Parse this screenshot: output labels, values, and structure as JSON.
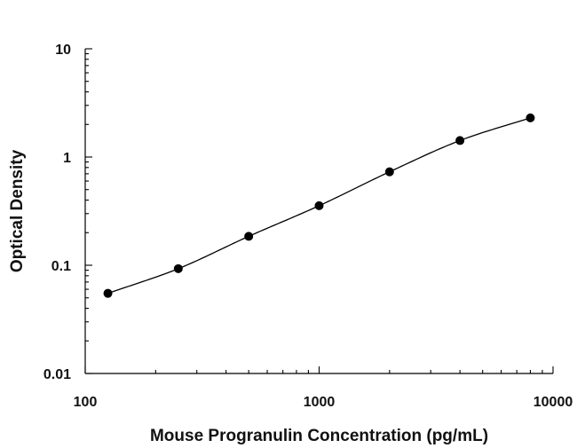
{
  "chart_data": {
    "type": "scatter",
    "title": "",
    "xlabel": "Mouse Progranulin Concentration (pg/mL)",
    "ylabel": "Optical Density",
    "x_scale": "log",
    "y_scale": "log",
    "xlim": [
      100,
      10000
    ],
    "ylim": [
      0.01,
      10
    ],
    "x_ticks": [
      "100",
      "1000",
      "10000"
    ],
    "y_ticks": [
      "10",
      "1",
      "0.1",
      "0.01"
    ],
    "grid": false,
    "legend": "none",
    "series": [
      {
        "x": [
          125,
          250,
          500,
          1000,
          2000,
          4000,
          8000
        ],
        "y": [
          0.055,
          0.093,
          0.185,
          0.355,
          0.73,
          1.42,
          2.3
        ]
      }
    ],
    "fit_curve": "4-parameter logistic through the standard points",
    "colors": {
      "marker": "#000000",
      "line": "#000000",
      "axis": "#000000"
    }
  }
}
